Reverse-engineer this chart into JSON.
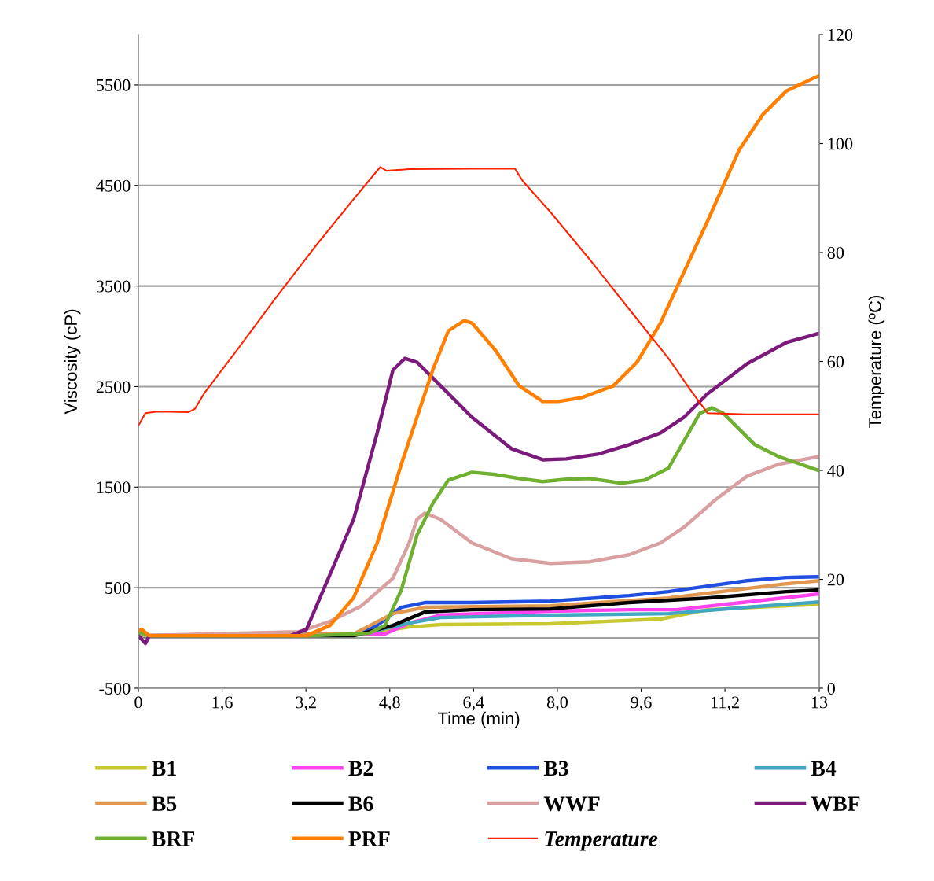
{
  "chart_data": {
    "type": "line",
    "xlabel": "Time (min)",
    "ylabel": "Viscosity (cP)",
    "y2label": "Temperature (ºC)",
    "xlim": [
      0,
      13
    ],
    "xticks": [
      0,
      {
        "value": 1.6,
        "label": "1,6"
      },
      {
        "value": 3.2,
        "label": "3,2"
      },
      {
        "value": 4.8,
        "label": "4,8"
      },
      {
        "value": 6.4,
        "label": "6,4"
      },
      {
        "value": 8.0,
        "label": "8,0"
      },
      {
        "value": 9.6,
        "label": "9,6"
      },
      {
        "value": 11.2,
        "label": "11,2"
      },
      13
    ],
    "ylim": [
      -500,
      6000
    ],
    "yticks": [
      -500,
      500,
      1500,
      2500,
      3500,
      4500,
      5500
    ],
    "y2lim": [
      0,
      120
    ],
    "y2ticks": [
      0,
      20,
      40,
      60,
      80,
      100,
      120
    ],
    "grid": "y",
    "legend": "bottom",
    "ref_lines": [
      {
        "axis": "y",
        "value": 0,
        "color": "#a0a0a0"
      }
    ],
    "series": [
      {
        "name": "B1",
        "color": "#c8c830",
        "x": [
          0,
          4.11,
          5.17,
          5.77,
          7.87,
          9.97,
          10.87,
          13
        ],
        "values": [
          23,
          23,
          109,
          133,
          141,
          188,
          281,
          336
        ]
      },
      {
        "name": "B2",
        "color": "#ff44ee",
        "x": [
          0,
          4.71,
          5.17,
          5.77,
          7.87,
          9.37,
          10.27,
          11.62,
          13
        ],
        "values": [
          23,
          40,
          148,
          227,
          266,
          281,
          281,
          359,
          438
        ]
      },
      {
        "name": "B3",
        "color": "#1f4fe0",
        "x": [
          0,
          4.11,
          4.56,
          5.02,
          5.47,
          6.37,
          7.87,
          9.37,
          10.12,
          10.87,
          11.62,
          12.37,
          13
        ],
        "values": [
          23,
          39,
          125,
          305,
          352,
          352,
          367,
          422,
          461,
          516,
          570,
          602,
          609
        ]
      },
      {
        "name": "B4",
        "color": "#40a8c0",
        "x": [
          0,
          4.11,
          5.17,
          5.77,
          7.87,
          10.12,
          11.62,
          13
        ],
        "values": [
          23,
          23,
          148,
          203,
          227,
          242,
          305,
          359
        ]
      },
      {
        "name": "B5",
        "color": "#e09850",
        "x": [
          0,
          4.11,
          4.86,
          5.47,
          7.87,
          10.12,
          12.37,
          13
        ],
        "values": [
          23,
          39,
          242,
          305,
          320,
          398,
          539,
          570
        ]
      },
      {
        "name": "B6",
        "color": "#000000",
        "x": [
          0,
          4.11,
          4.86,
          5.47,
          6.37,
          7.87,
          9.37,
          10.87,
          12.37,
          13
        ],
        "values": [
          23,
          23,
          125,
          258,
          281,
          289,
          352,
          398,
          461,
          477
        ]
      },
      {
        "name": "WWF",
        "color": "#d8a0a0",
        "x": [
          0,
          3.06,
          3.66,
          4.26,
          4.86,
          5.17,
          5.32,
          5.47,
          5.77,
          6.37,
          7.12,
          7.87,
          8.62,
          9.37,
          9.97,
          10.42,
          11.02,
          11.62,
          12.22,
          13
        ],
        "values": [
          23,
          62,
          164,
          320,
          594,
          945,
          1180,
          1242,
          1180,
          945,
          789,
          742,
          758,
          828,
          945,
          1102,
          1375,
          1609,
          1727,
          1805
        ]
      },
      {
        "name": "WBF",
        "color": "#7b1a7b",
        "x": [
          0,
          0.135,
          0.21,
          2.91,
          3.21,
          3.66,
          4.11,
          4.56,
          4.86,
          5.09,
          5.32,
          5.77,
          6.37,
          7.12,
          7.72,
          8.17,
          8.77,
          9.37,
          9.97,
          10.42,
          10.87,
          11.62,
          12.37,
          13
        ],
        "values": [
          23,
          -55,
          23,
          23,
          86,
          633,
          1180,
          2039,
          2664,
          2781,
          2742,
          2508,
          2195,
          1883,
          1773,
          1781,
          1828,
          1922,
          2039,
          2195,
          2430,
          2727,
          2938,
          3031
        ]
      },
      {
        "name": "BRF",
        "color": "#70b030",
        "x": [
          0,
          0.21,
          3.36,
          4.41,
          4.71,
          5.02,
          5.32,
          5.62,
          5.92,
          6.37,
          6.82,
          7.27,
          7.72,
          8.17,
          8.62,
          9.22,
          9.67,
          10.12,
          10.42,
          10.72,
          10.95,
          11.17,
          11.47,
          11.77,
          12.22,
          13
        ],
        "values": [
          55,
          23,
          23,
          47,
          125,
          477,
          1023,
          1336,
          1570,
          1648,
          1625,
          1586,
          1555,
          1578,
          1586,
          1539,
          1570,
          1688,
          1961,
          2234,
          2289,
          2234,
          2078,
          1922,
          1805,
          1664
        ]
      },
      {
        "name": "PRF",
        "color": "#ff8000",
        "x": [
          0,
          0.06,
          0.21,
          3.21,
          3.66,
          4.11,
          4.56,
          5.02,
          5.32,
          5.62,
          5.92,
          6.22,
          6.37,
          6.82,
          7.27,
          7.72,
          8.02,
          8.47,
          9.07,
          9.52,
          9.97,
          10.42,
          10.87,
          11.47,
          11.92,
          12.37,
          13
        ],
        "values": [
          70,
          86,
          23,
          23,
          125,
          400,
          945,
          1727,
          2195,
          2664,
          3055,
          3156,
          3133,
          2859,
          2508,
          2352,
          2352,
          2391,
          2508,
          2742,
          3133,
          3641,
          4148,
          4852,
          5203,
          5438,
          5594
        ]
      },
      {
        "name": "Temperature",
        "color": "#ff2000",
        "axis": "y2",
        "x": [
          0,
          0.135,
          0.36,
          0.96,
          1.08,
          1.26,
          1.86,
          2.61,
          3.36,
          4.11,
          4.62,
          4.74,
          5.17,
          6.37,
          7.19,
          7.34,
          7.87,
          8.62,
          9.37,
          10.12,
          10.57,
          10.87,
          11.62,
          13
        ],
        "values": [
          48.2,
          50.5,
          50.8,
          50.7,
          51.3,
          54.2,
          61.8,
          71.5,
          80.9,
          89.8,
          95.7,
          95.0,
          95.3,
          95.4,
          95.4,
          93.1,
          87.4,
          78.7,
          69.6,
          60.6,
          54.4,
          50.5,
          50.3,
          50.3
        ]
      }
    ]
  }
}
